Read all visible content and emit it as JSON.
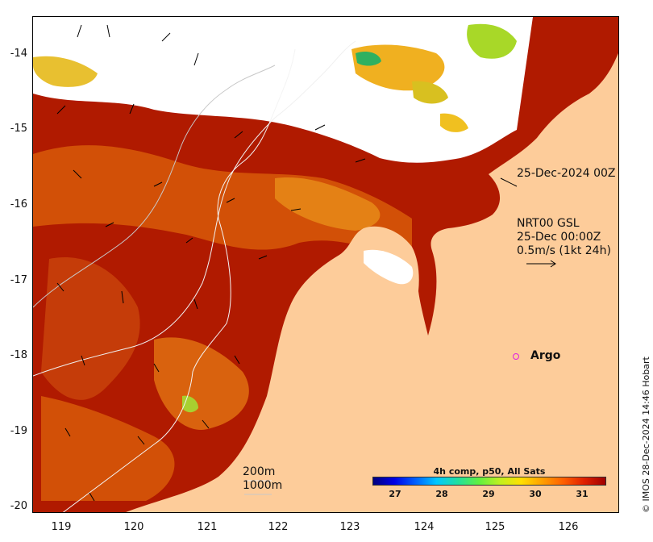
{
  "y_ticks": [
    "-14",
    "-15",
    "-16",
    "-17",
    "-18",
    "-19",
    "-20"
  ],
  "x_ticks": [
    "119",
    "120",
    "121",
    "122",
    "123",
    "124",
    "125",
    "126"
  ],
  "pass_time_label": "25-Dec-2024 00Z",
  "currents": {
    "product": "NRT00 GSL",
    "time": "25-Dec 00:00Z",
    "scale": "0.5m/s (1kt 24h)"
  },
  "isobaths": {
    "shallow": "200m",
    "deep": "1000m"
  },
  "argo_label": "Argo",
  "colorbar": {
    "title": "4h comp, p50, All Sats",
    "ticks": [
      "27",
      "28",
      "29",
      "30",
      "31"
    ],
    "colors": [
      "#00007f",
      "#0000e6",
      "#0060ff",
      "#00c8ff",
      "#20e0a0",
      "#60f040",
      "#c0f020",
      "#ffe000",
      "#ffa000",
      "#ff6000",
      "#e02000",
      "#a00000"
    ]
  },
  "stamp": "© IMOS 28-Dec-2024 14:46 Hobart",
  "colors": {
    "land": "#fdcc9a",
    "cloud": "#ffffff",
    "sst_warm": "#b01a00",
    "sst_mid": "#d85a08",
    "sst_cool": "#f0a020",
    "sst_green": "#90d030",
    "argo": "#e020e0"
  }
}
